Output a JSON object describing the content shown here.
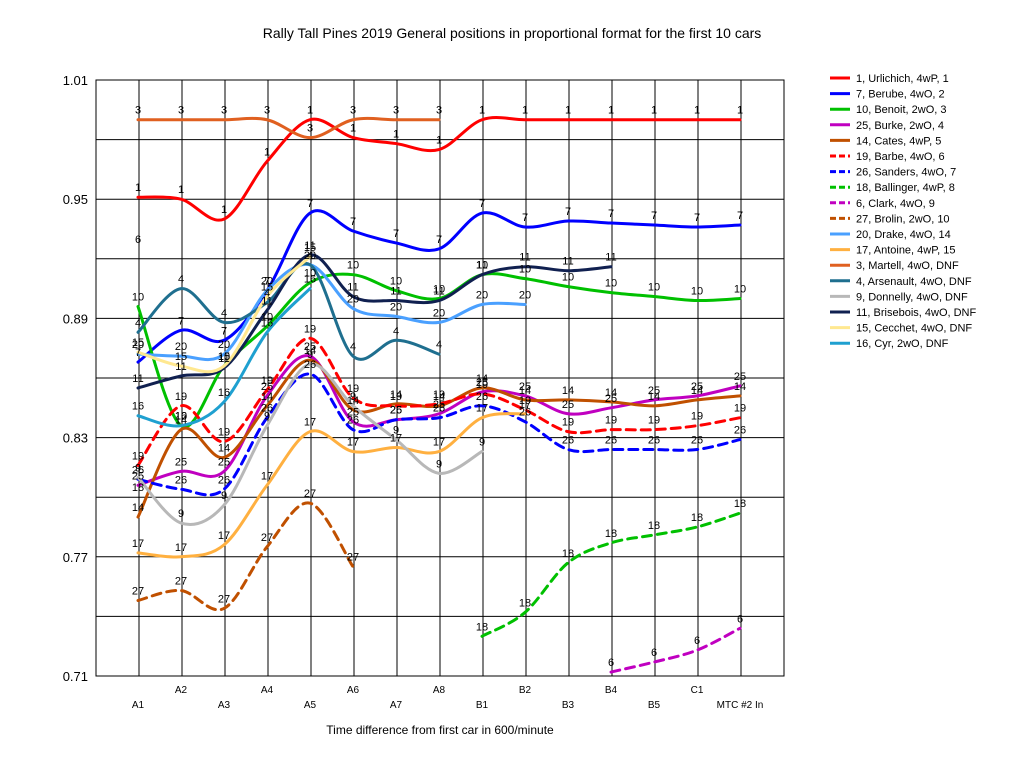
{
  "chart_data": {
    "type": "line",
    "title": "Rally Tall Pines 2019  General positions in proportional format for the first 10 cars",
    "xlabel": "Time difference from first car in 600/minute",
    "ylabel": "",
    "ylim": [
      0.71,
      1.01
    ],
    "yticks": [
      "0.71",
      "0.77",
      "0.83",
      "0.89",
      "0.95",
      "1.01"
    ],
    "categories": [
      "A1",
      "A2",
      "A3",
      "A4",
      "A5",
      "A6",
      "A7",
      "A8",
      "B1",
      "B2",
      "B3",
      "B4",
      "B5",
      "C1",
      "MTC #2 In"
    ],
    "grid": true,
    "legend_position": "right",
    "series": [
      {
        "name": "1, Urlichich, 4wP, 1",
        "label": "1",
        "color": "#ff0000",
        "dash": false,
        "values": [
          0.951,
          0.95,
          0.94,
          0.969,
          0.99,
          0.981,
          0.978,
          0.975,
          0.99,
          0.99,
          0.99,
          0.99,
          0.99,
          0.99,
          0.99
        ]
      },
      {
        "name": "7, Berube, 4wO, 2",
        "label": "7",
        "color": "#0000ff",
        "dash": false,
        "values": [
          0.868,
          0.884,
          0.879,
          0.904,
          0.943,
          0.934,
          0.928,
          0.925,
          0.943,
          0.936,
          0.939,
          0.938,
          0.937,
          0.936,
          0.937
        ]
      },
      {
        "name": "10, Benoit, 2wO, 3",
        "label": "10",
        "color": "#00c000",
        "dash": false,
        "values": [
          0.896,
          0.836,
          0.866,
          0.886,
          0.908,
          0.912,
          0.904,
          0.9,
          0.912,
          0.91,
          0.906,
          0.903,
          0.901,
          0.899,
          0.9
        ]
      },
      {
        "name": "25, Burke, 2wO, 4",
        "label": "25",
        "color": "#c000c0",
        "dash": false,
        "values": [
          0.806,
          0.813,
          0.813,
          0.851,
          0.871,
          0.838,
          0.839,
          0.842,
          0.853,
          0.851,
          0.842,
          0.845,
          0.849,
          0.851,
          0.856
        ]
      },
      {
        "name": "14, Cates, 4wP, 5",
        "label": "14",
        "color": "#c05000",
        "dash": false,
        "values": [
          0.79,
          0.834,
          0.82,
          0.846,
          0.869,
          0.844,
          0.847,
          0.846,
          0.855,
          0.849,
          0.849,
          0.848,
          0.846,
          0.849,
          0.851
        ]
      },
      {
        "name": "19, Barbe, 4wO, 6",
        "label": "19",
        "color": "#ff0000",
        "dash": true,
        "values": [
          0.816,
          0.846,
          0.828,
          0.854,
          0.88,
          0.85,
          0.846,
          0.847,
          0.852,
          0.844,
          0.833,
          0.834,
          0.834,
          0.836,
          0.84
        ]
      },
      {
        "name": "26, Sanders, 4wO, 7",
        "label": "26",
        "color": "#0000ff",
        "dash": true,
        "values": [
          0.809,
          0.804,
          0.804,
          0.84,
          0.862,
          0.834,
          0.839,
          0.84,
          0.846,
          0.838,
          0.824,
          0.824,
          0.824,
          0.824,
          0.829
        ]
      },
      {
        "name": "18, Ballinger, 4wP, 8",
        "label": "18",
        "color": "#00c000",
        "dash": true,
        "values": [
          0.8,
          null,
          null,
          null,
          null,
          null,
          null,
          null,
          0.73,
          0.742,
          0.767,
          0.777,
          0.781,
          0.785,
          0.792
        ]
      },
      {
        "name": "6, Clark, 4wO, 9",
        "label": "6",
        "color": "#c000c0",
        "dash": true,
        "values": [
          0.925,
          null,
          null,
          null,
          null,
          null,
          null,
          null,
          null,
          null,
          null,
          0.712,
          0.717,
          0.723,
          0.734
        ]
      },
      {
        "name": "27, Brolin, 2wO, 10",
        "label": "27",
        "color": "#c05000",
        "dash": true,
        "values": [
          0.748,
          0.753,
          0.744,
          0.775,
          0.797,
          0.765,
          null,
          null,
          null,
          null,
          null,
          null,
          null,
          null,
          null
        ]
      },
      {
        "name": "20, Drake, 4wO, 14",
        "label": "20",
        "color": "#4aa0ff",
        "dash": false,
        "values": [
          0.872,
          0.871,
          0.872,
          0.904,
          0.917,
          0.895,
          0.891,
          0.888,
          0.897,
          0.897,
          null,
          null,
          null,
          null,
          null
        ]
      },
      {
        "name": "17, Antoine, 4wP, 15",
        "label": "17",
        "color": "#ffb040",
        "dash": false,
        "values": [
          0.772,
          0.77,
          0.776,
          0.806,
          0.833,
          0.823,
          0.825,
          0.823,
          0.84,
          0.842,
          null,
          null,
          null,
          null,
          null
        ]
      },
      {
        "name": "3, Martell, 4wO, DNF",
        "label": "3",
        "color": "#e06020",
        "dash": false,
        "values": [
          0.99,
          0.99,
          0.99,
          0.99,
          0.981,
          0.99,
          0.99,
          0.99,
          null,
          null,
          null,
          null,
          null,
          null,
          null
        ]
      },
      {
        "name": "4, Arsenault, 4wO, DNF",
        "label": "4",
        "color": "#1f6f8f",
        "dash": false,
        "values": [
          0.883,
          0.905,
          0.888,
          0.898,
          0.917,
          0.871,
          0.879,
          0.872,
          null,
          null,
          null,
          null,
          null,
          null,
          null
        ]
      },
      {
        "name": "9, Donnelly, 4wO, DNF",
        "label": "9",
        "color": "#b8b8b8",
        "dash": false,
        "values": [
          0.81,
          0.787,
          0.796,
          0.836,
          0.867,
          0.846,
          0.829,
          0.812,
          0.823,
          null,
          null,
          null,
          null,
          null,
          null
        ]
      },
      {
        "name": "11, Brisebois, 4wO, DNF",
        "label": "11",
        "color": "#102050",
        "dash": false,
        "values": [
          0.855,
          0.861,
          0.865,
          0.894,
          0.922,
          0.901,
          0.899,
          0.899,
          0.912,
          0.916,
          0.914,
          0.916,
          null,
          null,
          null
        ]
      },
      {
        "name": "15, Cecchet, 4wO, DNF",
        "label": "15",
        "color": "#ffe890",
        "dash": false,
        "values": [
          0.873,
          0.866,
          0.866,
          0.901,
          0.921,
          null,
          null,
          null,
          null,
          null,
          null,
          null,
          null,
          null,
          null
        ]
      },
      {
        "name": "16, Cyr, 2wO, DNF",
        "label": "16",
        "color": "#1fa0d0",
        "dash": false,
        "values": [
          0.841,
          0.836,
          0.848,
          0.883,
          0.905,
          null,
          null,
          null,
          null,
          null,
          null,
          null,
          null,
          null,
          null
        ]
      }
    ]
  }
}
